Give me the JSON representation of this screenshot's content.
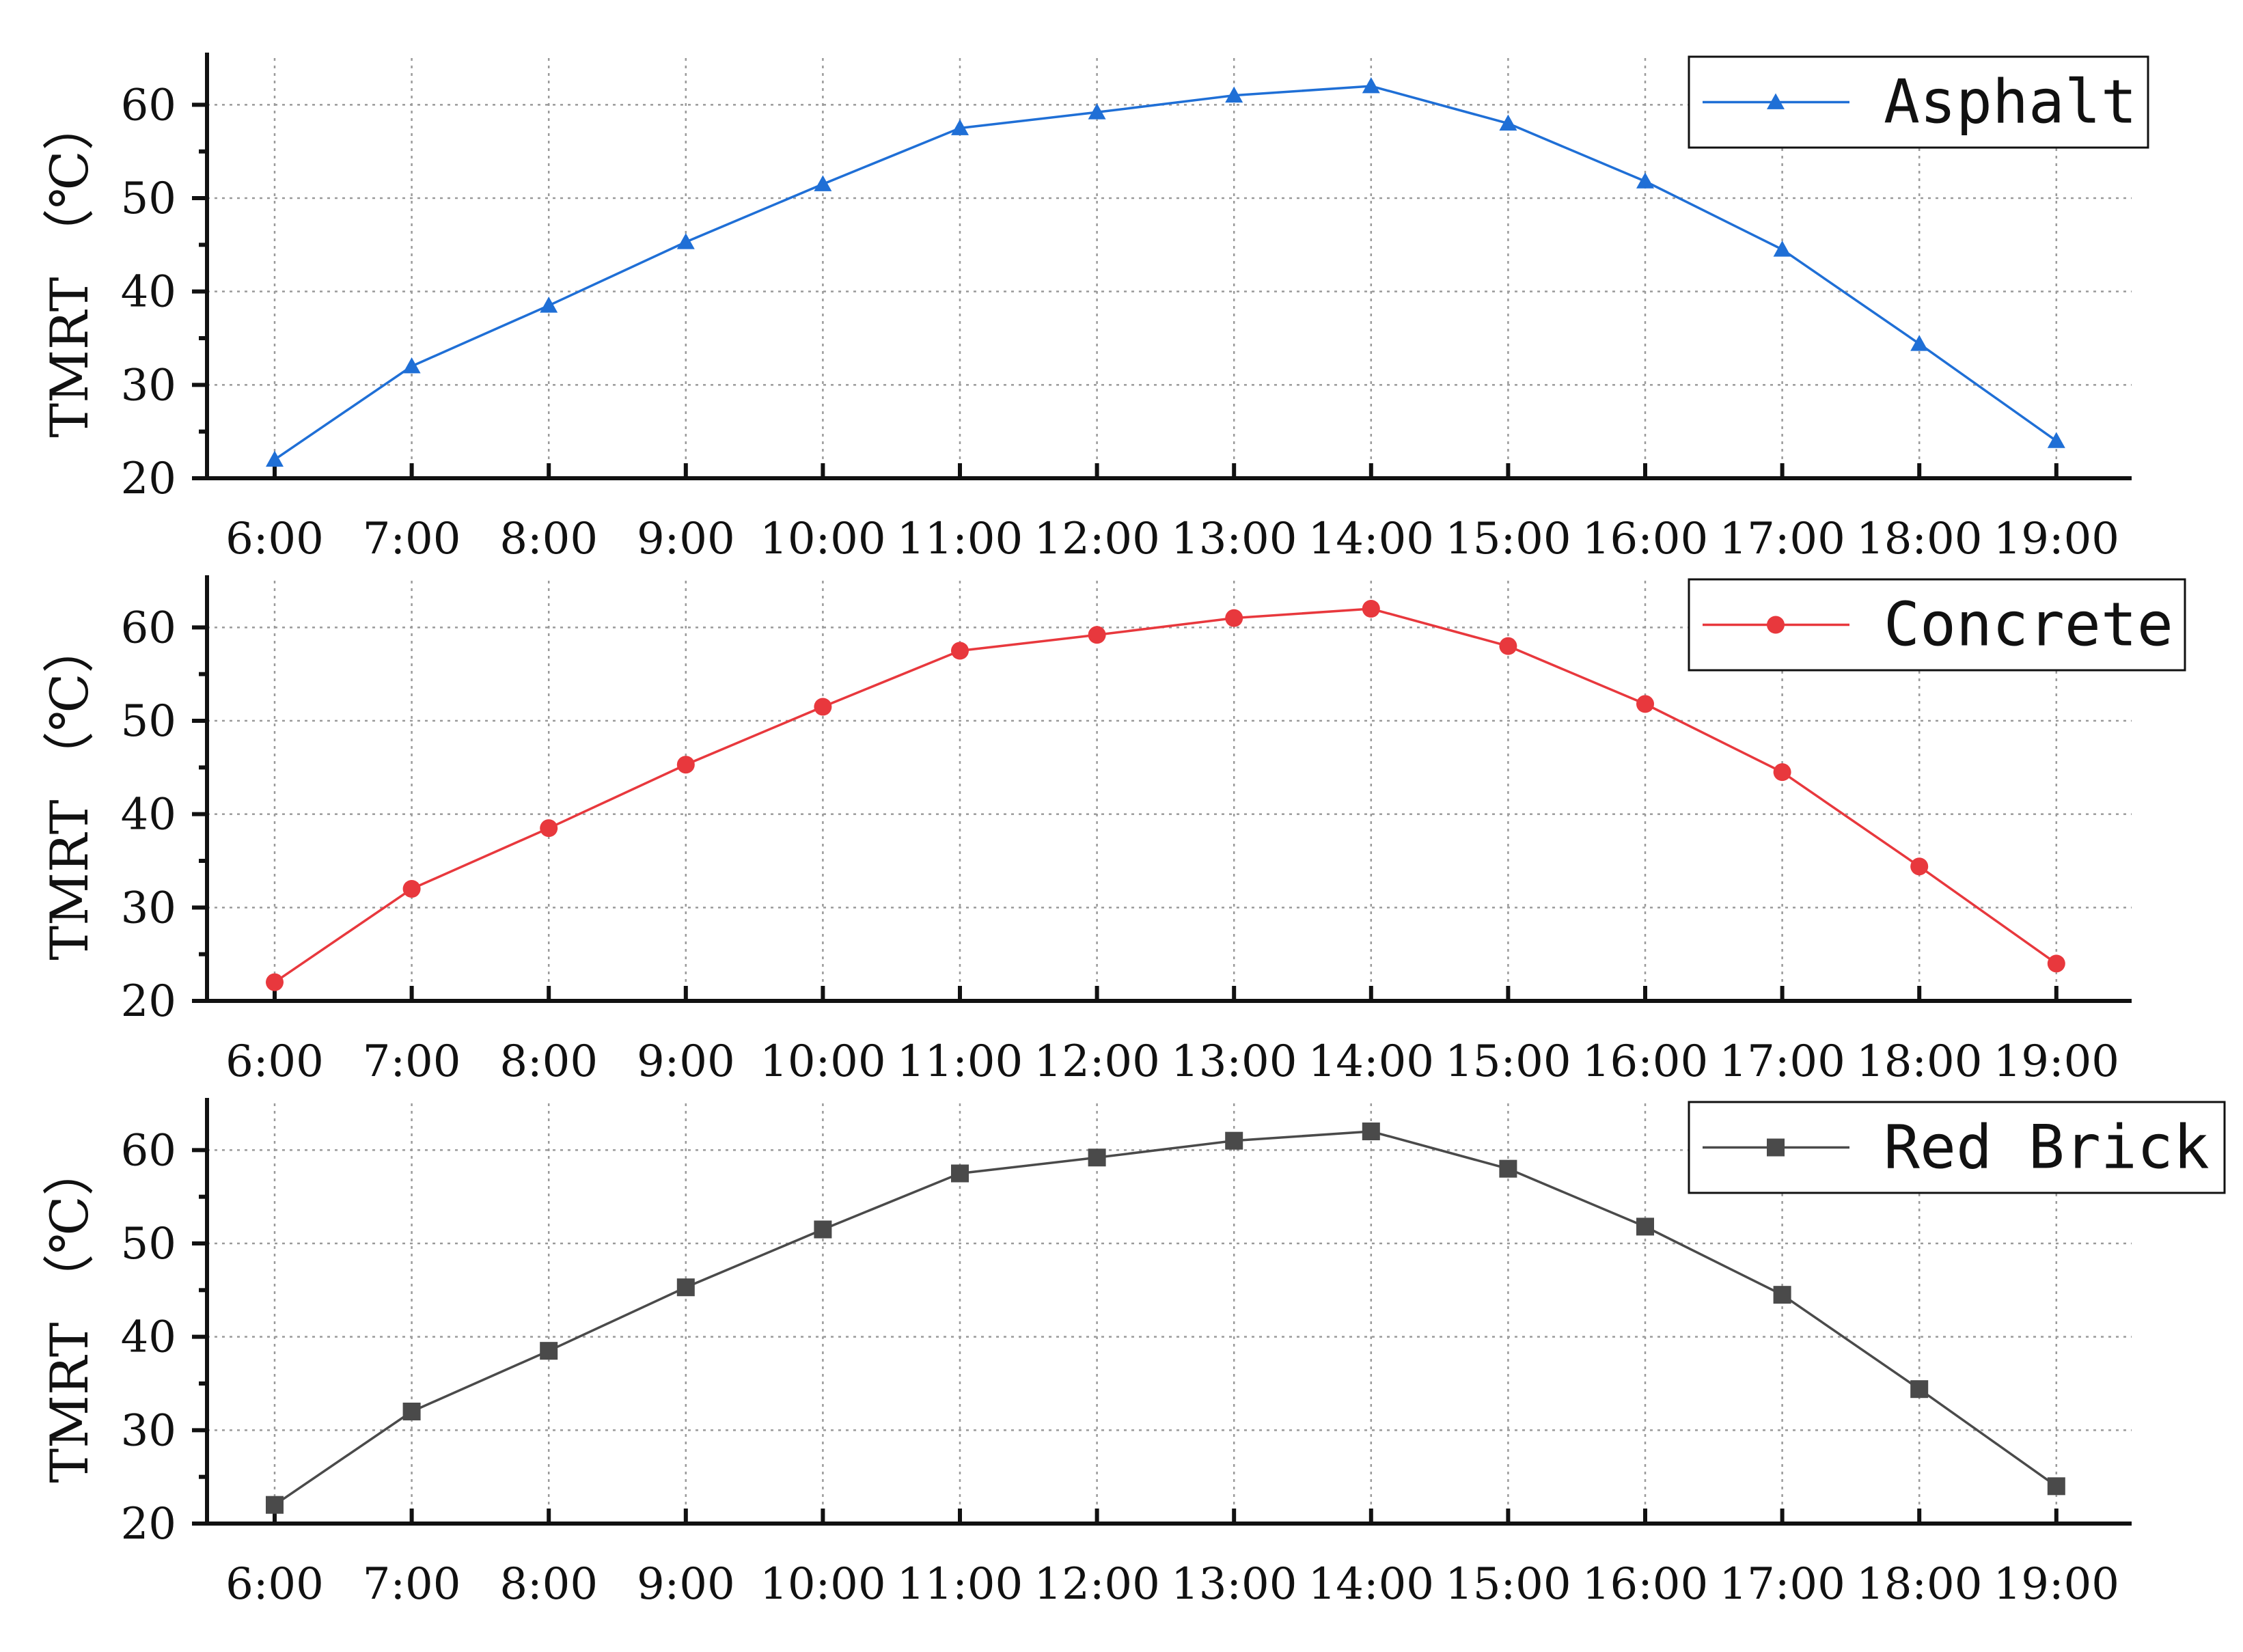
{
  "chart_data": [
    {
      "type": "line",
      "categories": [
        "6:00",
        "7:00",
        "8:00",
        "9:00",
        "10:00",
        "11:00",
        "12:00",
        "13:00",
        "14:00",
        "15:00",
        "16:00",
        "17:00",
        "18:00",
        "19:00"
      ],
      "series": [
        {
          "name": "Asphalt",
          "color": "#1f6fd6",
          "marker": "triangle",
          "values": [
            22,
            32,
            38.5,
            45.3,
            51.5,
            57.5,
            59.2,
            61,
            62,
            58,
            51.8,
            44.5,
            34.4,
            24
          ]
        }
      ],
      "ylabel": "TMRT （℃）",
      "yticks": [
        20,
        30,
        40,
        50,
        60
      ],
      "ylim": [
        20,
        65
      ],
      "grid": true,
      "legend": "top-right"
    },
    {
      "type": "line",
      "categories": [
        "6:00",
        "7:00",
        "8:00",
        "9:00",
        "10:00",
        "11:00",
        "12:00",
        "13:00",
        "14:00",
        "15:00",
        "16:00",
        "17:00",
        "18:00",
        "19:00"
      ],
      "series": [
        {
          "name": "Concrete",
          "color": "#e8383d",
          "marker": "circle",
          "values": [
            22,
            32,
            38.5,
            45.3,
            51.5,
            57.5,
            59.2,
            61,
            62,
            58,
            51.8,
            44.5,
            34.4,
            24
          ]
        }
      ],
      "ylabel": "TMRT （℃）",
      "yticks": [
        20,
        30,
        40,
        50,
        60
      ],
      "ylim": [
        20,
        65
      ],
      "grid": true,
      "legend": "top-right"
    },
    {
      "type": "line",
      "categories": [
        "6:00",
        "7:00",
        "8:00",
        "9:00",
        "10:00",
        "11:00",
        "12:00",
        "13:00",
        "14:00",
        "15:00",
        "16:00",
        "17:00",
        "18:00",
        "19:00"
      ],
      "series": [
        {
          "name": "Red Brick",
          "color": "#4a4a4a",
          "marker": "square",
          "values": [
            22,
            32,
            38.5,
            45.3,
            51.5,
            57.5,
            59.2,
            61,
            62,
            58,
            51.8,
            44.5,
            34.4,
            24
          ]
        }
      ],
      "ylabel": "TMRT （℃）",
      "yticks": [
        20,
        30,
        40,
        50,
        60
      ],
      "ylim": [
        20,
        65
      ],
      "grid": true,
      "legend": "top-right"
    }
  ]
}
